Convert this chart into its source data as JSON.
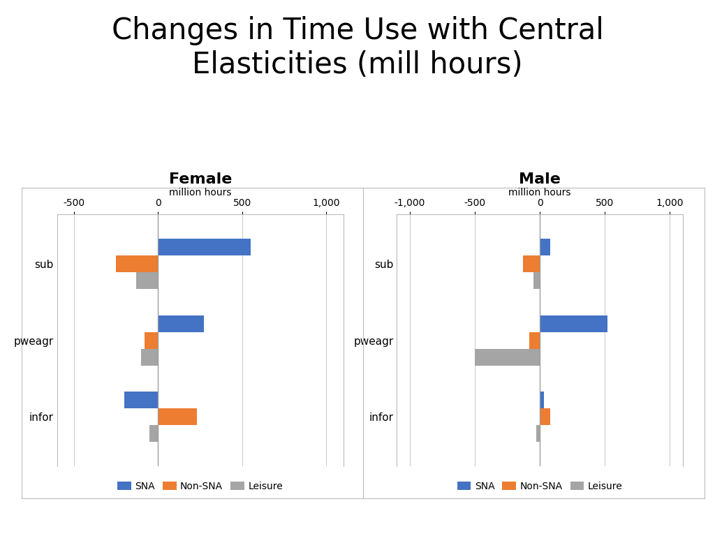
{
  "title": "Changes in Time Use with Central\nElasticities (mill hours)",
  "female": {
    "title": "Female",
    "xlabel": "million hours",
    "categories": [
      "sub",
      "pweagr",
      "infor"
    ],
    "SNA": [
      550,
      270,
      -200
    ],
    "NonSNA": [
      -250,
      -80,
      230
    ],
    "Leisure": [
      -130,
      -100,
      -50
    ],
    "xlim": [
      -600,
      1100
    ],
    "xticks": [
      -500,
      0,
      500,
      1000
    ],
    "xticklabels": [
      "-500",
      "0",
      "500",
      "1,000"
    ]
  },
  "male": {
    "title": "Male",
    "xlabel": "million hours",
    "categories": [
      "sub",
      "pweagr",
      "infor"
    ],
    "SNA": [
      80,
      520,
      30
    ],
    "NonSNA": [
      -130,
      -80,
      80
    ],
    "Leisure": [
      -50,
      -500,
      -30
    ],
    "xlim": [
      -1100,
      1100
    ],
    "xticks": [
      -1000,
      -500,
      0,
      500,
      1000
    ],
    "xticklabels": [
      "-1,000",
      "-500",
      "0",
      "500",
      "1,000"
    ]
  },
  "colors": {
    "SNA": "#4472C4",
    "NonSNA": "#ED7D31",
    "Leisure": "#A5A5A5"
  },
  "bar_height": 0.22,
  "background_color": "#FFFFFF",
  "title_fontsize": 30,
  "panel_title_fontsize": 16,
  "tick_fontsize": 10,
  "xlabel_fontsize": 10
}
